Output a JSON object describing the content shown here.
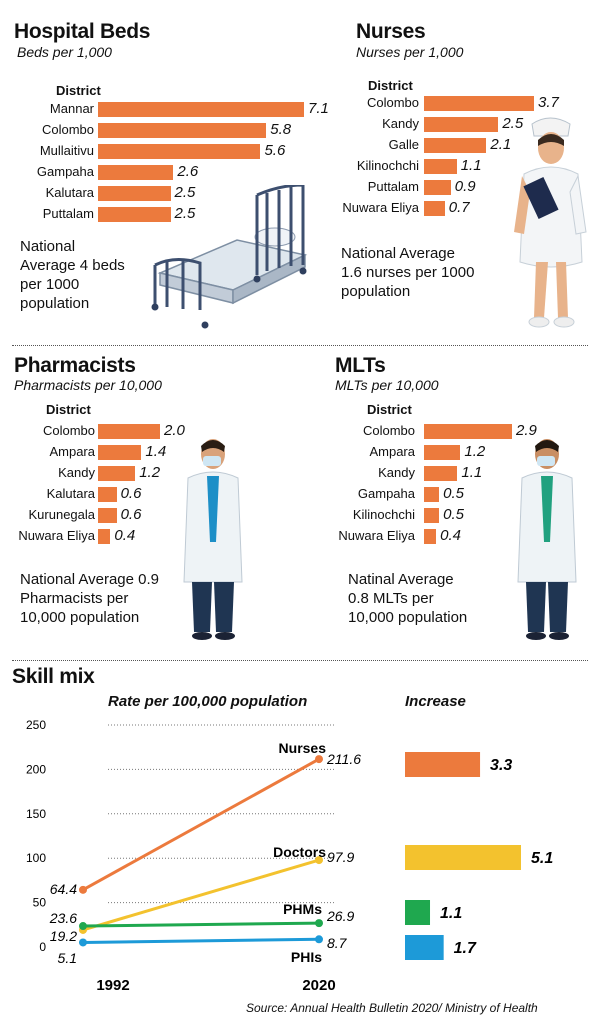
{
  "chart_data": [
    {
      "type": "bar",
      "title": "Hospital Beds",
      "subtitle": "Beds per 1,000",
      "column_header": "District",
      "categories": [
        "Mannar",
        "Colombo",
        "Mullaitivu",
        "Gampaha",
        "Kalutara",
        "Puttalam"
      ],
      "values": [
        7.1,
        5.8,
        5.6,
        2.6,
        2.5,
        2.5
      ],
      "value_labels": [
        "7.1",
        "5.8",
        "5.6",
        "2.6",
        "2.5",
        "2.5"
      ],
      "note": [
        "National",
        "Average 4 beds",
        "per 1000",
        "population"
      ],
      "max": 7.1
    },
    {
      "type": "bar",
      "title": "Nurses",
      "subtitle": "Nurses per 1,000",
      "column_header": "District",
      "categories": [
        "Colombo",
        "Kandy",
        "Galle",
        "Kilinochchi",
        "Puttalam",
        "Nuwara Eliya"
      ],
      "values": [
        3.7,
        2.5,
        2.1,
        1.1,
        0.9,
        0.7
      ],
      "value_labels": [
        "3.7",
        "2.5",
        "2.1",
        "1.1",
        "0.9",
        "0.7"
      ],
      "note": [
        "National Average",
        "1.6 nurses per 1000",
        "population"
      ],
      "max": 3.7
    },
    {
      "type": "bar",
      "title": "Pharmacists",
      "subtitle": "Pharmacists per 10,000",
      "column_header": "District",
      "categories": [
        "Colombo",
        "Ampara",
        "Kandy",
        "Kalutara",
        "Kurunegala",
        "Nuwara Eliya"
      ],
      "values": [
        2.0,
        1.4,
        1.2,
        0.6,
        0.6,
        0.4
      ],
      "value_labels": [
        "2.0",
        "1.4",
        "1.2",
        "0.6",
        "0.6",
        "0.4"
      ],
      "note": [
        "National Average 0.9",
        "Pharmacists per",
        "10,000 population"
      ],
      "max": 2.0
    },
    {
      "type": "bar",
      "title": "MLTs",
      "subtitle": "MLTs per 10,000",
      "column_header": "District",
      "categories": [
        "Colombo",
        "Ampara",
        "Kandy",
        "Gampaha",
        "Kilinochchi",
        "Nuwara Eliya"
      ],
      "values": [
        2.9,
        1.2,
        1.1,
        0.5,
        0.5,
        0.4
      ],
      "value_labels": [
        "2.9",
        "1.2",
        "1.1",
        "0.5",
        "0.5",
        "0.4"
      ],
      "note": [
        "Natinal Average",
        "0.8 MLTs per",
        "10,000 population"
      ],
      "max": 2.9
    },
    {
      "type": "line",
      "title": "Skill mix",
      "subtitle": "Rate per 100,000 population",
      "x": [
        "1992",
        "2020"
      ],
      "ylim": [
        0,
        250
      ],
      "yticks": [
        0,
        50,
        100,
        150,
        200,
        250
      ],
      "series": [
        {
          "name": "Nurses",
          "values": [
            64.4,
            211.6
          ],
          "labels": [
            "64.4",
            "211.6"
          ],
          "color": "#ec7a3d"
        },
        {
          "name": "Doctors",
          "values": [
            19.2,
            97.9
          ],
          "labels": [
            "19.2",
            "97.9"
          ],
          "color": "#f3c22e"
        },
        {
          "name": "PHMs",
          "values": [
            23.6,
            26.9
          ],
          "labels": [
            "23.6",
            "26.9"
          ],
          "color": "#1fa84f"
        },
        {
          "name": "PHIs",
          "values": [
            5.1,
            8.7
          ],
          "labels": [
            "5.1",
            "8.7"
          ],
          "color": "#1d9ad8"
        }
      ]
    },
    {
      "type": "bar",
      "title": "Increase",
      "categories": [
        "Nurses",
        "Doctors",
        "PHMs",
        "PHIs"
      ],
      "values": [
        3.3,
        5.1,
        1.1,
        1.7
      ],
      "value_labels": [
        "3.3",
        "5.1",
        "1.1",
        "1.7"
      ],
      "colors": [
        "#ec7a3d",
        "#f3c22e",
        "#1fa84f",
        "#1d9ad8"
      ]
    }
  ],
  "source": "Source: Annual Health Bulletin 2020/ Ministry of Health",
  "colors": {
    "bar": "#ec7a3d",
    "text": "#111111"
  },
  "icons": [
    "hospital-bed-icon",
    "nurse-icon",
    "pharmacist-icon",
    "lab-technician-icon"
  ]
}
